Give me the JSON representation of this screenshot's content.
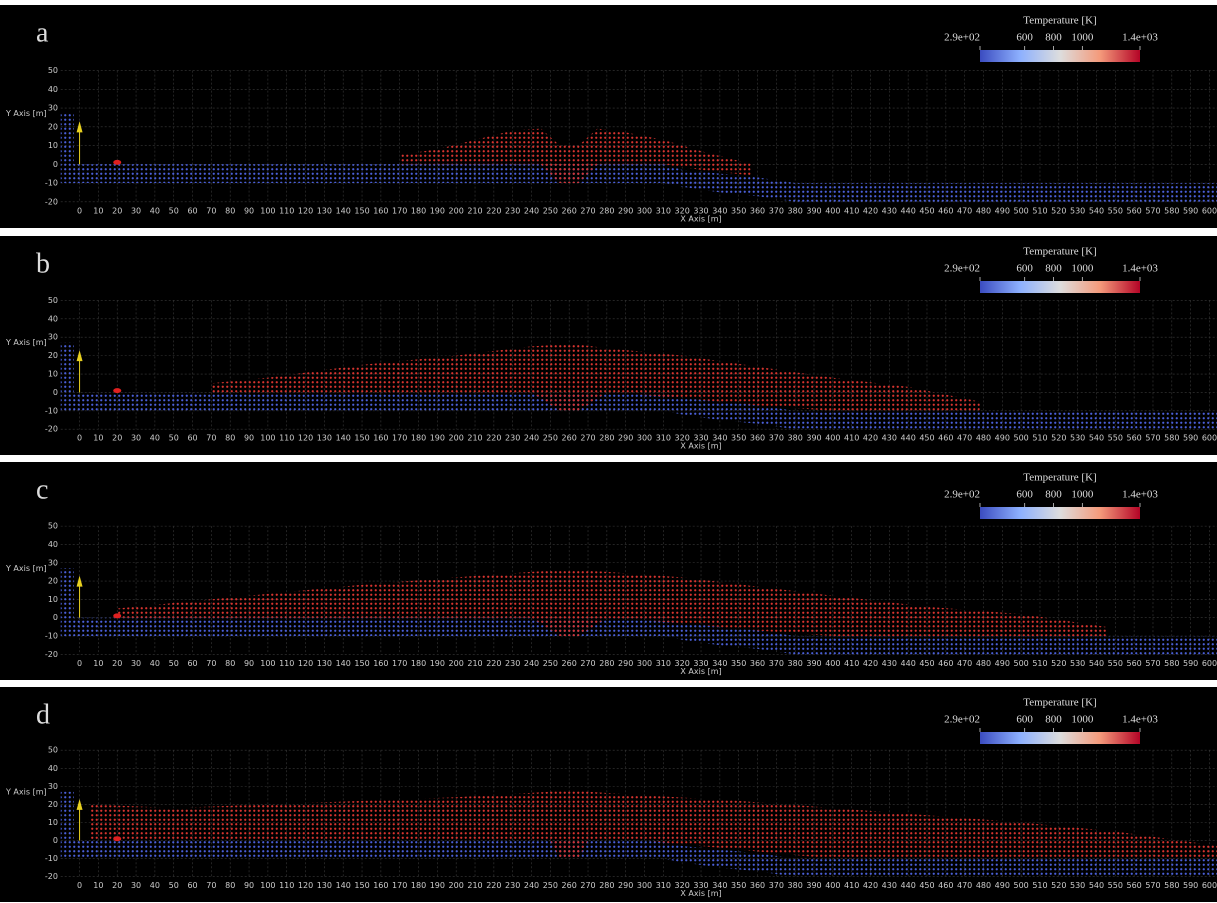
{
  "chart_data": [
    {
      "type": "area",
      "label": "a",
      "xlabel": "X Axis [m]",
      "ylabel": "Y Axis [m]",
      "xlim": [
        -38,
        604
      ],
      "ylim": [
        -34,
        85
      ],
      "xticks": [
        0,
        10,
        20,
        30,
        40,
        50,
        60,
        70,
        80,
        90,
        100,
        110,
        120,
        130,
        140,
        150,
        160,
        170,
        180,
        190,
        200,
        210,
        220,
        230,
        240,
        250,
        260,
        270,
        280,
        290,
        300,
        310,
        320,
        330,
        340,
        350,
        360,
        370,
        380,
        390,
        400,
        410,
        420,
        430,
        440,
        450,
        460,
        470,
        480,
        490,
        500,
        510,
        520,
        530,
        540,
        550,
        560,
        570,
        580,
        590,
        600
      ],
      "yticks": [
        -20,
        -10,
        0,
        10,
        20,
        30,
        40,
        50
      ],
      "grid": true,
      "colorbar": {
        "title": "Temperature [K]",
        "lim": [
          290,
          1400
        ],
        "ticks": [
          {
            "value": 290,
            "label": "2.9e+02"
          },
          600,
          800,
          1000,
          {
            "value": 1400,
            "label": "1.4e+03"
          }
        ]
      },
      "series": [
        {
          "color": "#4a5fd8",
          "x": [
            -10,
            -3,
            -3,
            310,
            320,
            340,
            360,
            380,
            605
          ],
          "values": [
            27,
            27,
            0,
            0,
            -3,
            -5,
            -7,
            -10,
            -10
          ],
          "base": [
            -10,
            -10,
            -10,
            -10,
            -12,
            -15,
            -17,
            -20,
            -20
          ]
        },
        {
          "color": "#d8342f",
          "x": [
            170,
            190,
            210,
            230,
            245,
            255,
            265,
            275,
            290,
            310,
            330,
            357
          ],
          "values": [
            5,
            8,
            13,
            18,
            19,
            10,
            10,
            19,
            17,
            13,
            7,
            0
          ],
          "base": [
            0,
            0,
            0,
            0,
            0,
            -10,
            -10,
            0,
            0,
            0,
            -3,
            -6
          ]
        }
      ]
    },
    {
      "type": "area",
      "label": "b",
      "xlabel": "X Axis [m]",
      "ylabel": "Y Axis [m]",
      "xlim": [
        -38,
        604
      ],
      "ylim": [
        -34,
        85
      ],
      "xticks": [
        0,
        10,
        20,
        30,
        40,
        50,
        60,
        70,
        80,
        90,
        100,
        110,
        120,
        130,
        140,
        150,
        160,
        170,
        180,
        190,
        200,
        210,
        220,
        230,
        240,
        250,
        260,
        270,
        280,
        290,
        300,
        310,
        320,
        330,
        340,
        350,
        360,
        370,
        380,
        390,
        400,
        410,
        420,
        430,
        440,
        450,
        460,
        470,
        480,
        490,
        500,
        510,
        520,
        530,
        540,
        550,
        560,
        570,
        580,
        590,
        600
      ],
      "yticks": [
        -20,
        -10,
        0,
        10,
        20,
        30,
        40,
        50
      ],
      "grid": true,
      "colorbar": {
        "title": "Temperature [K]",
        "lim": [
          290,
          1400
        ],
        "ticks": [
          {
            "value": 290,
            "label": "2.9e+02"
          },
          600,
          800,
          1000,
          {
            "value": 1400,
            "label": "1.4e+03"
          }
        ]
      },
      "series": [
        {
          "color": "#4a5fd8",
          "x": [
            -10,
            -3,
            -3,
            310,
            320,
            340,
            360,
            380,
            605
          ],
          "values": [
            27,
            27,
            0,
            0,
            -3,
            -5,
            -7,
            -10,
            -10
          ],
          "base": [
            -10,
            -10,
            -10,
            -10,
            -12,
            -15,
            -17,
            -20,
            -20
          ]
        },
        {
          "color": "#d8342f",
          "x": [
            70,
            100,
            150,
            200,
            240,
            255,
            265,
            280,
            320,
            360,
            400,
            440,
            478
          ],
          "values": [
            5,
            8,
            15,
            20,
            25,
            26,
            26,
            24,
            20,
            14,
            8,
            3,
            -5
          ],
          "base": [
            0,
            0,
            0,
            0,
            0,
            -10,
            -10,
            0,
            -3,
            -7,
            -10,
            -10,
            -10
          ]
        }
      ]
    },
    {
      "type": "area",
      "label": "c",
      "xlabel": "X Axis [m]",
      "ylabel": "Y Axis [m]",
      "xlim": [
        -38,
        604
      ],
      "ylim": [
        -34,
        85
      ],
      "xticks": [
        0,
        10,
        20,
        30,
        40,
        50,
        60,
        70,
        80,
        90,
        100,
        110,
        120,
        130,
        140,
        150,
        160,
        170,
        180,
        190,
        200,
        210,
        220,
        230,
        240,
        250,
        260,
        270,
        280,
        290,
        300,
        310,
        320,
        330,
        340,
        350,
        360,
        370,
        380,
        390,
        400,
        410,
        420,
        430,
        440,
        450,
        460,
        470,
        480,
        490,
        500,
        510,
        520,
        530,
        540,
        550,
        560,
        570,
        580,
        590,
        600
      ],
      "yticks": [
        -20,
        -10,
        0,
        10,
        20,
        30,
        40,
        50
      ],
      "grid": true,
      "colorbar": {
        "title": "Temperature [K]",
        "lim": [
          290,
          1400
        ],
        "ticks": [
          {
            "value": 290,
            "label": "2.9e+02"
          },
          600,
          800,
          1000,
          {
            "value": 1400,
            "label": "1.4e+03"
          }
        ]
      },
      "series": [
        {
          "color": "#4a5fd8",
          "x": [
            -10,
            -3,
            -3,
            310,
            320,
            340,
            360,
            380,
            605
          ],
          "values": [
            27,
            27,
            0,
            0,
            -3,
            -5,
            -7,
            -10,
            -10
          ],
          "base": [
            -10,
            -10,
            -10,
            -10,
            -12,
            -15,
            -17,
            -20,
            -20
          ]
        },
        {
          "color": "#d8342f",
          "x": [
            20,
            50,
            100,
            150,
            200,
            240,
            255,
            265,
            280,
            320,
            360,
            400,
            450,
            500,
            545
          ],
          "values": [
            5,
            8,
            13,
            18,
            22,
            25,
            26,
            26,
            25,
            22,
            17,
            12,
            6,
            2,
            -5
          ],
          "base": [
            0,
            0,
            0,
            0,
            0,
            0,
            -10,
            -10,
            0,
            -3,
            -7,
            -10,
            -10,
            -10,
            -10
          ]
        }
      ]
    },
    {
      "type": "area",
      "label": "d",
      "xlabel": "X Axis [m]",
      "ylabel": "Y Axis [m]",
      "xlim": [
        -38,
        604
      ],
      "ylim": [
        -34,
        85
      ],
      "xticks": [
        0,
        10,
        20,
        30,
        40,
        50,
        60,
        70,
        80,
        90,
        100,
        110,
        120,
        130,
        140,
        150,
        160,
        170,
        180,
        190,
        200,
        210,
        220,
        230,
        240,
        250,
        260,
        270,
        280,
        290,
        300,
        310,
        320,
        330,
        340,
        350,
        360,
        370,
        380,
        390,
        400,
        410,
        420,
        430,
        440,
        450,
        460,
        470,
        480,
        490,
        500,
        510,
        520,
        530,
        540,
        550,
        560,
        570,
        580,
        590,
        600
      ],
      "yticks": [
        -20,
        -10,
        0,
        10,
        20,
        30,
        40,
        50
      ],
      "grid": true,
      "colorbar": {
        "title": "Temperature [K]",
        "lim": [
          290,
          1400
        ],
        "ticks": [
          {
            "value": 290,
            "label": "2.9e+02"
          },
          600,
          800,
          1000,
          {
            "value": 1400,
            "label": "1.4e+03"
          }
        ]
      },
      "series": [
        {
          "color": "#4a5fd8",
          "x": [
            -10,
            -3,
            -3,
            310,
            320,
            340,
            360,
            380,
            605
          ],
          "values": [
            27,
            27,
            0,
            0,
            -3,
            -5,
            -7,
            -10,
            -10
          ],
          "base": [
            -10,
            -10,
            -10,
            -10,
            -12,
            -15,
            -17,
            -20,
            -20
          ]
        },
        {
          "color": "#d8342f",
          "x": [
            5,
            50,
            100,
            150,
            200,
            250,
            255,
            265,
            270,
            300,
            350,
            400,
            450,
            500,
            550,
            605
          ],
          "values": [
            20,
            18,
            20,
            22,
            24,
            27,
            28,
            28,
            27,
            25,
            22,
            18,
            14,
            10,
            5,
            -3
          ],
          "base": [
            0,
            0,
            0,
            0,
            0,
            0,
            -10,
            -10,
            0,
            0,
            -5,
            -10,
            -10,
            -10,
            -10,
            -10
          ]
        }
      ]
    }
  ]
}
